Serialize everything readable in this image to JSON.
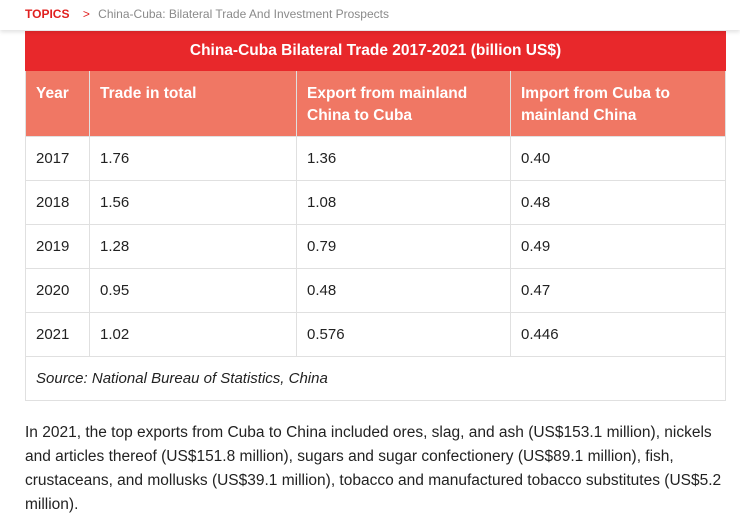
{
  "breadcrumb": {
    "topics_label": "TOPICS",
    "separator": ">",
    "current": "China-Cuba: Bilateral Trade And Investment Prospects"
  },
  "table": {
    "title": "China-Cuba Bilateral Trade 2017-2021 (billion US$)",
    "headers": [
      "Year",
      "Trade in total",
      "Export from mainland China to Cuba",
      "Import from Cuba to mainland China"
    ],
    "rows": [
      [
        "2017",
        "1.76",
        "1.36",
        "0.40"
      ],
      [
        "2018",
        "1.56",
        "1.08",
        "0.48"
      ],
      [
        "2019",
        "1.28",
        "0.79",
        "0.49"
      ],
      [
        "2020",
        "0.95",
        "0.48",
        "0.47"
      ],
      [
        "2021",
        "1.02",
        "0.576",
        "0.446"
      ]
    ],
    "source": "Source: National Bureau of Statistics, China"
  },
  "paragraph": "In 2021, the top exports from Cuba to China included ores, slag, and ash (US$153.1 million), nickels and articles thereof (US$151.8 million), sugars and sugar confectionery (US$89.1 million), fish, crustaceans, and mollusks (US$39.1 million), tobacco and manufactured tobacco substitutes (US$5.2 million).",
  "colors": {
    "accent_red": "#e8282b",
    "header_salmon": "#f07764",
    "breadcrumb_grey": "#8a8a8a"
  }
}
